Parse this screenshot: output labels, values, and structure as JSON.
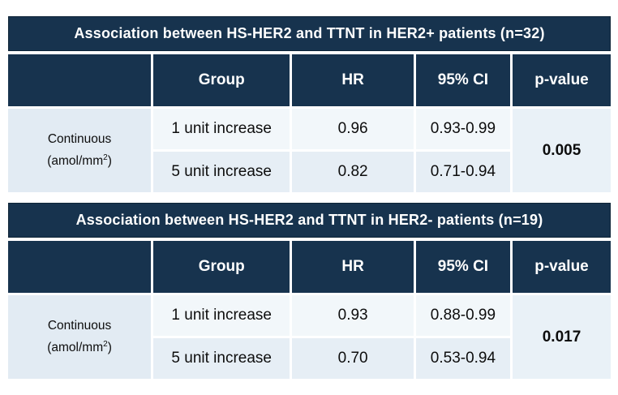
{
  "colors": {
    "header_navy": "#17334e",
    "header_text": "#ffffff",
    "row_light_bg": "#f2f7fa",
    "row_alt_bg": "#e6eef5",
    "label_cell_bg": "#e2ebf3",
    "pvalue_cell_bg": "#e9f1f7",
    "body_text": "#0d0d0d"
  },
  "tables": [
    {
      "title": "Association between HS-HER2 and TTNT in HER2+ patients (n=32)",
      "headers": {
        "col1": "",
        "group": "Group",
        "hr": "HR",
        "ci": "95% CI",
        "pvalue": "p-value"
      },
      "row_label": {
        "line1": "Continuous",
        "line2_prefix": "(amol/mm",
        "superscript": "2",
        "line2_suffix": ")"
      },
      "rows": [
        {
          "group": "1 unit increase",
          "hr": "0.96",
          "ci": "0.93-0.99"
        },
        {
          "group": "5 unit increase",
          "hr": "0.82",
          "ci": "0.71-0.94"
        }
      ],
      "p_value": "0.005"
    },
    {
      "title": "Association between HS-HER2 and TTNT in HER2- patients (n=19)",
      "headers": {
        "col1": "",
        "group": "Group",
        "hr": "HR",
        "ci": "95% CI",
        "pvalue": "p-value"
      },
      "row_label": {
        "line1": "Continuous",
        "line2_prefix": "(amol/mm",
        "superscript": "2",
        "line2_suffix": ")"
      },
      "rows": [
        {
          "group": "1 unit increase",
          "hr": "0.93",
          "ci": "0.88-0.99"
        },
        {
          "group": "5 unit increase",
          "hr": "0.70",
          "ci": "0.53-0.94"
        }
      ],
      "p_value": "0.017"
    }
  ]
}
